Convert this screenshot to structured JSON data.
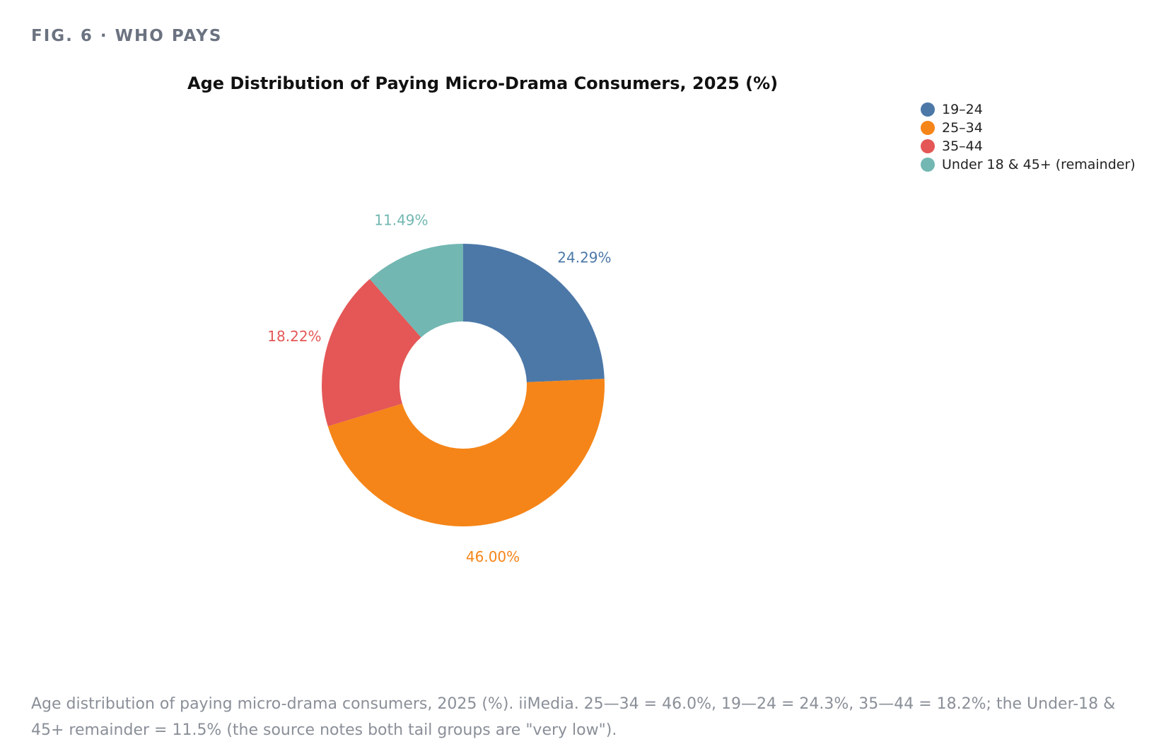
{
  "figure_label": "FIG. 6 · WHO PAYS",
  "chart_data": {
    "type": "pie",
    "donut": true,
    "title": "Age Distribution of Paying Micro-Drama Consumers, 2025 (%)",
    "slices": [
      {
        "label": "19–24",
        "value": 24.29,
        "display": "24.29%",
        "color": "#4c78a8"
      },
      {
        "label": "25–34",
        "value": 46.0,
        "display": "46.00%",
        "color": "#f58518"
      },
      {
        "label": "35–44",
        "value": 18.22,
        "display": "18.22%",
        "color": "#e45756"
      },
      {
        "label": "Under 18 & 45+ (remainder)",
        "value": 11.49,
        "display": "11.49%",
        "color": "#72b7b2"
      }
    ],
    "legend_position": "top-right"
  },
  "caption": "Age distribution of paying micro-drama consumers, 2025 (%). iiMedia. 25—34 = 46.0%, 19—24 = 24.3%, 35—44 = 18.2%; the Under-18 & 45+ remainder = 11.5% (the source notes both tail groups are \"very low\")."
}
